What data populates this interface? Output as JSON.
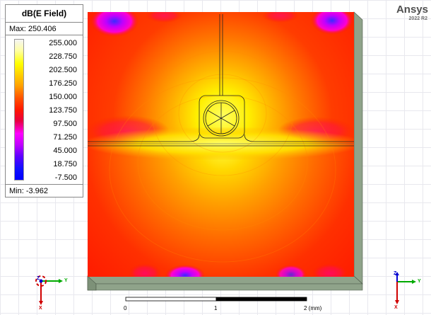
{
  "legend": {
    "title": "dB(E Field)",
    "max_text": "Max: 250.406",
    "min_text": "Min:  -3.962",
    "values": [
      "255.000",
      "228.750",
      "202.500",
      "176.250",
      "150.000",
      "123.750",
      "97.500",
      "71.250",
      "45.000",
      "18.750",
      "-7.500"
    ],
    "colors": [
      "#f5f5f5",
      "#ffffa0",
      "#ffff00",
      "#ffd000",
      "#ffa000",
      "#ff5000",
      "#ff1800",
      "#e80040",
      "#ff00ff",
      "#6000ff",
      "#0000ff"
    ]
  },
  "brand": {
    "name": "Ansys",
    "version": "2022 R2"
  },
  "scale": {
    "labels": [
      "0",
      "1",
      "2 (mm)"
    ]
  },
  "triad_left": {
    "z": "Z",
    "y": "Y",
    "x": "X"
  },
  "triad_right": {
    "z": "Z",
    "y": "Y",
    "x": "X"
  },
  "colors": {
    "substrate_side": "#8fa38a",
    "field_hot": "#ff2a00",
    "field_peak": "#ffff40"
  }
}
